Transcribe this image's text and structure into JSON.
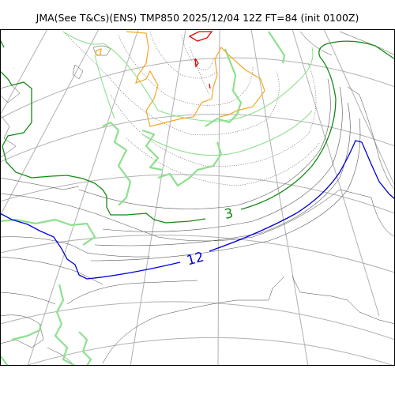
{
  "title": "JMA(See T&Cs)(ENS) TMP850 2025/12/04 12Z FT=84 (init 0100Z)",
  "contour_labels": [
    {
      "text": "3",
      "color": "#138a13"
    },
    {
      "text": "12",
      "color": "#0000e0"
    }
  ],
  "colors": {
    "green": "#138a13",
    "blue": "#0000e0",
    "orange": "#f5a623",
    "red": "#e00000",
    "light_green": "#8ee08e"
  }
}
